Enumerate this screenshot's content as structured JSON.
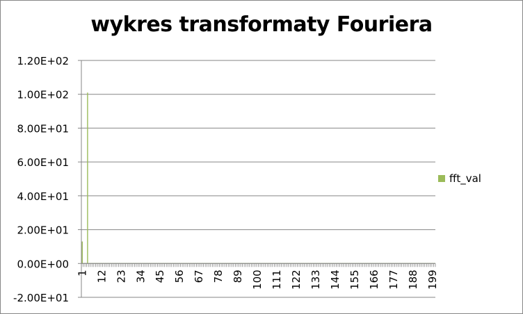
{
  "chart_data": {
    "type": "bar",
    "title": "wykres transformaty Fouriera",
    "xlabel": "",
    "ylabel": "",
    "ylim": [
      -20,
      120
    ],
    "yticks": [
      -20,
      0,
      20,
      40,
      60,
      80,
      100,
      120
    ],
    "ytick_labels": [
      "-2.00E+01",
      "0.00E+00",
      "2.00E+01",
      "4.00E+01",
      "6.00E+01",
      "8.00E+01",
      "1.00E+02",
      "1.20E+02"
    ],
    "x_count": 200,
    "xtick_labels": [
      "1",
      "12",
      "23",
      "34",
      "45",
      "56",
      "67",
      "78",
      "89",
      "100",
      "111",
      "122",
      "133",
      "144",
      "155",
      "166",
      "177",
      "188",
      "199"
    ],
    "grid": true,
    "legend_position": "right",
    "series": [
      {
        "name": "fft_val",
        "color": "#9bbb59",
        "nonzero": [
          {
            "x": 1,
            "y": 13
          },
          {
            "x": 4,
            "y": 101
          }
        ],
        "baseline_value": 0.3
      }
    ]
  }
}
